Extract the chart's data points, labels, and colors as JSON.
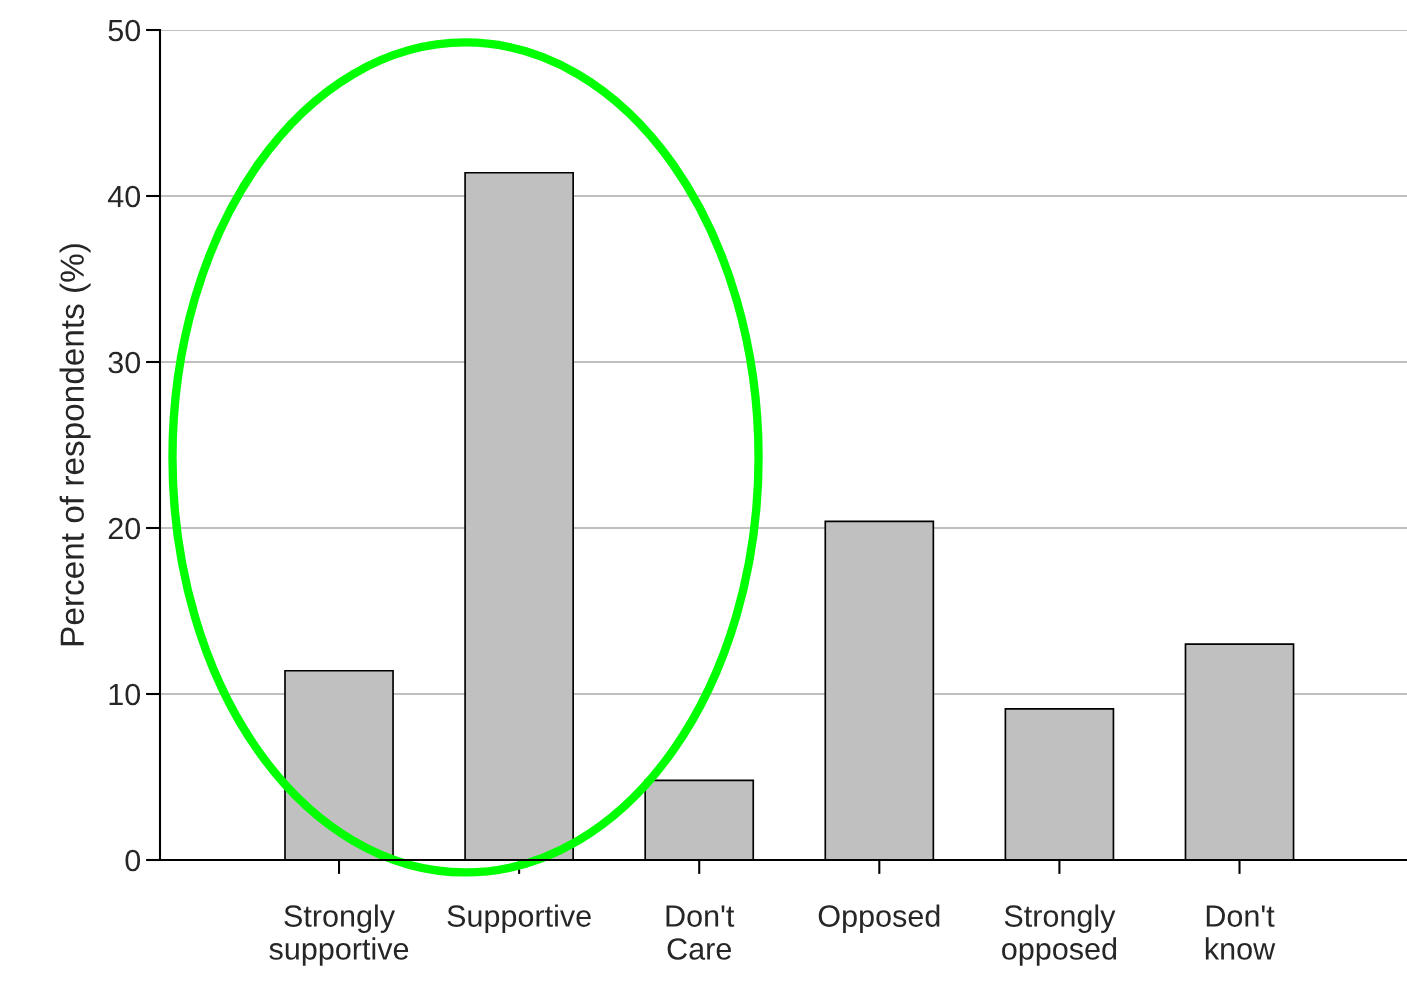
{
  "chart_data": {
    "type": "bar",
    "ylabel": "Percent of respondents (%)",
    "categories": [
      "Strongly\nsupportive",
      "Supportive",
      "Don't\nCare",
      "Opposed",
      "Strongly\nopposed",
      "Don't\nknow"
    ],
    "values": [
      11.4,
      41.4,
      4.8,
      20.4,
      9.1,
      13.0
    ],
    "color": "#c0c0c0",
    "ylim": [
      0,
      50
    ],
    "yticks": [
      0,
      10,
      20,
      30,
      40,
      50
    ],
    "grid": "y",
    "legend": false
  }
}
